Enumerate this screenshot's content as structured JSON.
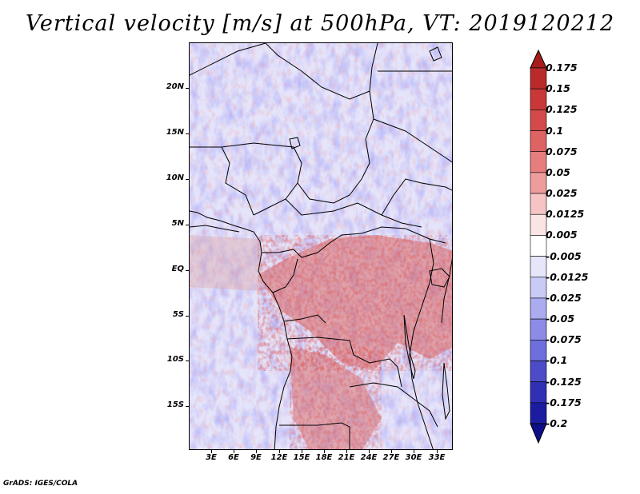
{
  "title": "Vertical velocity [m/s] at 500hPa, VT: 2019120212",
  "footer": "GrADS: IGES/COLA",
  "lat_labels": [
    "20N",
    "15N",
    "10N",
    "5N",
    "EQ",
    "5S",
    "10S",
    "15S"
  ],
  "lon_labels": [
    "3E",
    "6E",
    "9E",
    "12E",
    "15E",
    "18E",
    "21E",
    "24E",
    "27E",
    "30E",
    "33E"
  ],
  "colorbar": {
    "labels": [
      "0.175",
      "0.15",
      "0.125",
      "0.1",
      "0.075",
      "0.05",
      "0.025",
      "0.0125",
      "0.005",
      "-0.005",
      "-0.0125",
      "-0.025",
      "-0.05",
      "-0.075",
      "-0.1",
      "-0.125",
      "-0.175",
      "-0.2"
    ],
    "colors": [
      "#a61c1c",
      "#b92a2a",
      "#c93838",
      "#d44a4a",
      "#de6363",
      "#e67e7e",
      "#ee9d9d",
      "#f6c4c4",
      "#fbe4e4",
      "#ffffff",
      "#e6e6fb",
      "#cacaf6",
      "#ababf0",
      "#8c8ce6",
      "#6e6edc",
      "#4c4cc8",
      "#3030b4",
      "#1c1ca0",
      "#0e0e88"
    ]
  }
}
